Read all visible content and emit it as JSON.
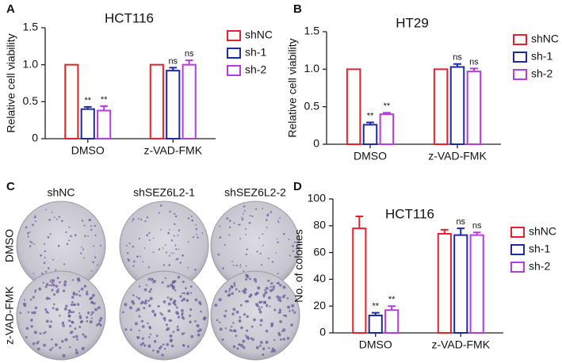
{
  "chart_data": [
    {
      "type": "bar",
      "panel_label": "A",
      "title": "HCT116",
      "y_label": "Relative cell viability",
      "categories": [
        "DMSO",
        "z-VAD-FMK"
      ],
      "series": [
        {
          "name": "shNC",
          "color": "#e8202a",
          "values": [
            1,
            1
          ],
          "errors": [
            0,
            0
          ],
          "annotations": [
            null,
            null
          ]
        },
        {
          "name": "sh-1",
          "color": "#1f2aa0",
          "values": [
            0.4,
            0.92
          ],
          "errors": [
            0.03,
            0.04
          ],
          "annotations": [
            "**",
            "ns"
          ]
        },
        {
          "name": "sh-2",
          "color": "#b83be0",
          "values": [
            0.38,
            1.0
          ],
          "errors": [
            0.06,
            0.06
          ],
          "annotations": [
            "**",
            "ns"
          ]
        }
      ],
      "ylim": [
        0,
        1.5
      ],
      "yticks": [
        0,
        0.5,
        {
          "value": 1,
          "label": "1.0"
        },
        1.5
      ]
    },
    {
      "type": "bar",
      "panel_label": "B",
      "title": "HT29",
      "y_label": "Relative cell viability",
      "categories": [
        "DMSO",
        "z-VAD-FMK"
      ],
      "series": [
        {
          "name": "shNC",
          "color": "#e8202a",
          "values": [
            1,
            1
          ],
          "errors": [
            0,
            0
          ],
          "annotations": [
            null,
            null
          ]
        },
        {
          "name": "sh-1",
          "color": "#1f2aa0",
          "values": [
            0.26,
            1.03
          ],
          "errors": [
            0.03,
            0.04
          ],
          "annotations": [
            "**",
            "ns"
          ]
        },
        {
          "name": "sh-2",
          "color": "#b83be0",
          "values": [
            0.4,
            0.97
          ],
          "errors": [
            0.02,
            0.04
          ],
          "annotations": [
            "**",
            "ns"
          ]
        }
      ],
      "ylim": [
        0,
        1.5
      ],
      "yticks": [
        0,
        0.5,
        {
          "value": 1,
          "label": "1.0"
        },
        1.5
      ]
    },
    {
      "type": "bar",
      "panel_label": "D",
      "title": "HCT116",
      "y_label": "No. of colonies",
      "categories": [
        "DMSO",
        "z-VAD-FMK"
      ],
      "series": [
        {
          "name": "shNC",
          "color": "#e8202a",
          "values": [
            78,
            74
          ],
          "errors": [
            9,
            3
          ],
          "annotations": [
            null,
            null
          ]
        },
        {
          "name": "sh-1",
          "color": "#1f2aa0",
          "values": [
            13,
            73
          ],
          "errors": [
            2,
            5
          ],
          "annotations": [
            "**",
            "ns"
          ]
        },
        {
          "name": "sh-2",
          "color": "#b83be0",
          "values": [
            17,
            73
          ],
          "errors": [
            3,
            2
          ],
          "annotations": [
            "**",
            "ns"
          ]
        }
      ],
      "ylim": [
        0,
        100
      ],
      "yticks": [
        0,
        20,
        40,
        60,
        80,
        100
      ]
    }
  ],
  "panel_c": {
    "label": "C",
    "columns": [
      "shNC",
      "shSEZ6L2-1",
      "shSEZ6L2-2"
    ],
    "rows": [
      "DMSO",
      "z-VAD-FMK"
    ]
  }
}
